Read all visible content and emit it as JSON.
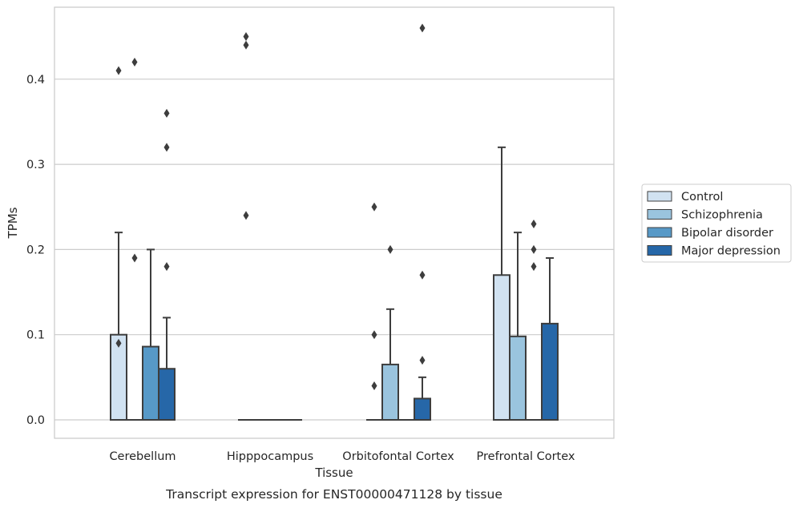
{
  "chart_data": {
    "type": "box",
    "title": "Transcript expression for ENST00000471128 by tissue",
    "xlabel": "Tissue",
    "ylabel": "TPMs",
    "ylim": [
      -0.022,
      0.484
    ],
    "yticks": [
      0.0,
      0.1,
      0.2,
      0.3,
      0.4
    ],
    "ytick_labels": [
      "0.0",
      "0.1",
      "0.2",
      "0.3",
      "0.4"
    ],
    "grid": true,
    "legend_position": "right",
    "categories": [
      "Cerebellum",
      "Hipppocampus",
      "Orbitofontal Cortex",
      "Prefrontal Cortex"
    ],
    "series": [
      {
        "name": "Control",
        "color": "#d1e2f1",
        "boxes": [
          {
            "q1": 0.0,
            "median": 0.0,
            "q3": 0.1,
            "whisker_low": 0.0,
            "whisker_high": 0.22,
            "fliers": [
              0.41,
              0.09
            ]
          },
          {
            "q1": 0.0,
            "median": 0.0,
            "q3": 0.0,
            "whisker_low": 0.0,
            "whisker_high": 0.0,
            "fliers": [
              0.45,
              0.44,
              0.24
            ]
          },
          {
            "q1": 0.0,
            "median": 0.0,
            "q3": 0.0,
            "whisker_low": 0.0,
            "whisker_high": 0.0,
            "fliers": [
              0.25,
              0.1,
              0.04
            ]
          },
          {
            "q1": 0.0,
            "median": 0.0,
            "q3": 0.17,
            "whisker_low": 0.0,
            "whisker_high": 0.32,
            "fliers": []
          }
        ]
      },
      {
        "name": "Schizophrenia",
        "color": "#9ac4de",
        "boxes": [
          {
            "q1": 0.0,
            "median": 0.0,
            "q3": 0.0,
            "whisker_low": 0.0,
            "whisker_high": 0.0,
            "fliers": [
              0.42,
              0.19
            ]
          },
          {
            "q1": 0.0,
            "median": 0.0,
            "q3": 0.0,
            "whisker_low": 0.0,
            "whisker_high": 0.0,
            "fliers": []
          },
          {
            "q1": 0.0,
            "median": 0.0,
            "q3": 0.065,
            "whisker_low": 0.0,
            "whisker_high": 0.13,
            "fliers": [
              0.2
            ]
          },
          {
            "q1": 0.0,
            "median": 0.0,
            "q3": 0.098,
            "whisker_low": 0.0,
            "whisker_high": 0.22,
            "fliers": []
          }
        ]
      },
      {
        "name": "Bipolar disorder",
        "color": "#5799c7",
        "boxes": [
          {
            "q1": 0.0,
            "median": 0.0,
            "q3": 0.086,
            "whisker_low": 0.0,
            "whisker_high": 0.2,
            "fliers": []
          },
          {
            "q1": 0.0,
            "median": 0.0,
            "q3": 0.0,
            "whisker_low": 0.0,
            "whisker_high": 0.0,
            "fliers": []
          },
          {
            "q1": 0.0,
            "median": 0.0,
            "q3": 0.0,
            "whisker_low": 0.0,
            "whisker_high": 0.0,
            "fliers": []
          },
          {
            "q1": 0.0,
            "median": 0.0,
            "q3": 0.0,
            "whisker_low": 0.0,
            "whisker_high": 0.0,
            "fliers": [
              0.23,
              0.2,
              0.18
            ]
          }
        ]
      },
      {
        "name": "Major depression",
        "color": "#2667a8",
        "boxes": [
          {
            "q1": 0.0,
            "median": 0.0,
            "q3": 0.06,
            "whisker_low": 0.0,
            "whisker_high": 0.12,
            "fliers": [
              0.36,
              0.32,
              0.18
            ]
          },
          {
            "q1": 0.0,
            "median": 0.0,
            "q3": 0.0,
            "whisker_low": 0.0,
            "whisker_high": 0.0,
            "fliers": []
          },
          {
            "q1": 0.0,
            "median": 0.0,
            "q3": 0.025,
            "whisker_low": 0.0,
            "whisker_high": 0.05,
            "fliers": [
              0.46,
              0.17,
              0.07
            ]
          },
          {
            "q1": 0.0,
            "median": 0.0,
            "q3": 0.113,
            "whisker_low": 0.0,
            "whisker_high": 0.19,
            "fliers": []
          }
        ]
      }
    ]
  }
}
